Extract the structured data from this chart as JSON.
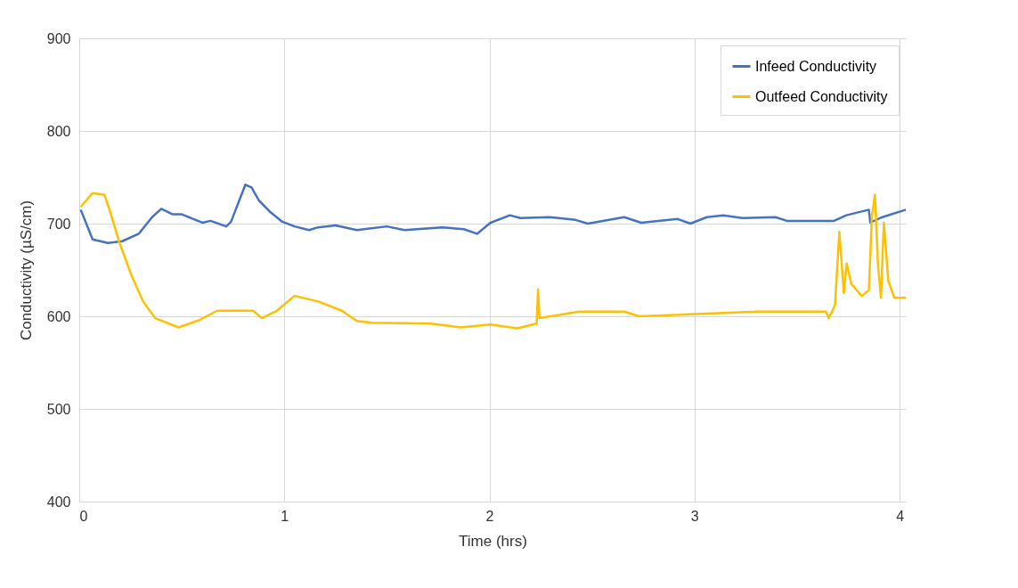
{
  "chart_data": {
    "type": "line",
    "xlabel": "Time (hrs)",
    "ylabel": "Conductivity (µS/cm)",
    "xlim": [
      0,
      4.03
    ],
    "xticks": [
      0,
      1,
      2,
      3,
      4
    ],
    "ylim": [
      400,
      900
    ],
    "yticks": [
      400,
      500,
      600,
      700,
      800,
      900
    ],
    "grid": true,
    "legend": "top right",
    "marker": "none",
    "line_style": "solid",
    "series": [
      {
        "name": "Infeed Conductivity",
        "color": "#4472c4",
        "x": [
          0.007,
          0.065,
          0.14,
          0.21,
          0.29,
          0.355,
          0.4,
          0.456,
          0.5,
          0.6,
          0.64,
          0.717,
          0.74,
          0.81,
          0.84,
          0.876,
          0.934,
          0.99,
          1.05,
          1.12,
          1.165,
          1.25,
          1.354,
          1.5,
          1.585,
          1.77,
          1.875,
          1.94,
          2.005,
          2.1,
          2.15,
          2.295,
          2.42,
          2.48,
          2.657,
          2.74,
          2.917,
          2.98,
          3.06,
          3.14,
          3.235,
          3.395,
          3.45,
          3.68,
          3.74,
          3.85,
          3.857,
          3.916,
          4.03
        ],
        "values": [
          715,
          683,
          679,
          681,
          689,
          707,
          716,
          710,
          710,
          701,
          703,
          697,
          702,
          742,
          739,
          725,
          712,
          702,
          697,
          693,
          696,
          698,
          693,
          697,
          693,
          696,
          694,
          689,
          701,
          709,
          706,
          707,
          704,
          700,
          707,
          701,
          705,
          700,
          707,
          709,
          706,
          707,
          703,
          703,
          709,
          715,
          701,
          707,
          715
        ]
      },
      {
        "name": "Outfeed Conductivity",
        "color": "#ffc000",
        "x": [
          0.007,
          0.065,
          0.123,
          0.152,
          0.195,
          0.253,
          0.311,
          0.37,
          0.485,
          0.586,
          0.673,
          0.847,
          0.89,
          0.963,
          1.05,
          1.165,
          1.28,
          1.354,
          1.426,
          1.715,
          1.86,
          2.005,
          2.135,
          2.23,
          2.237,
          2.244,
          2.44,
          2.657,
          2.73,
          3.31,
          3.64,
          3.655,
          3.685,
          3.706,
          3.728,
          3.742,
          3.764,
          3.815,
          3.85,
          3.865,
          3.88,
          3.894,
          3.909,
          3.923,
          3.945,
          3.974,
          4.03
        ],
        "values": [
          718,
          733,
          731,
          712,
          680,
          645,
          616,
          598,
          588,
          596,
          606,
          606,
          598,
          606,
          622,
          616,
          606,
          595,
          593,
          592,
          588,
          591,
          587,
          592,
          629,
          598,
          605,
          605,
          600,
          605,
          605,
          598,
          612,
          691,
          625,
          657,
          635,
          622,
          628,
          709,
          731,
          657,
          620,
          701,
          638,
          620,
          620
        ]
      }
    ]
  }
}
